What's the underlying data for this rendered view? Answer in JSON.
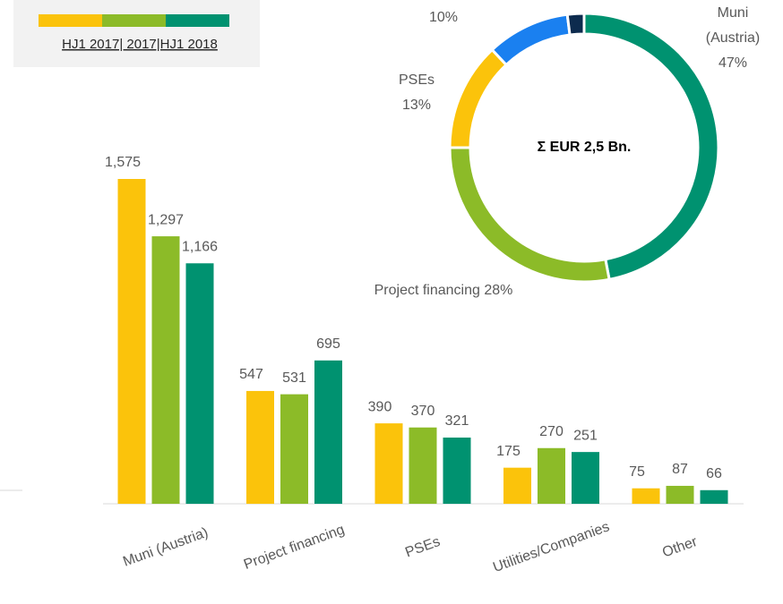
{
  "legend_label": "HJ1 2017| 2017|HJ1 2018",
  "chart_data": [
    {
      "type": "bar",
      "categories": [
        "Muni (Austria)",
        "Project financing",
        "PSEs",
        "Utilities/Companies",
        "Other"
      ],
      "series": [
        {
          "color": "#fbc30b",
          "values": [
            1575,
            547,
            390,
            175,
            75
          ],
          "value_labels": [
            "1,575",
            "547",
            "390",
            "175",
            "75"
          ]
        },
        {
          "color": "#8cbb28",
          "values": [
            1297,
            531,
            370,
            270,
            87
          ],
          "value_labels": [
            "1,297",
            "531",
            "370",
            "270",
            "87"
          ]
        },
        {
          "color": "#009270",
          "values": [
            1166,
            695,
            321,
            251,
            66
          ],
          "value_labels": [
            "1,166",
            "695",
            "321",
            "251",
            "66"
          ]
        }
      ]
    },
    {
      "type": "donut",
      "center_label": "Σ EUR 2,5 Bn.",
      "categories": [
        "Muni (Austria)",
        "Project financing",
        "PSEs",
        "Utilities/Companies",
        "Other"
      ],
      "values": [
        47,
        28,
        13,
        10,
        2
      ],
      "value_labels": [
        "47%",
        "28%",
        "13%",
        "10%",
        null
      ],
      "colors": [
        "#009270",
        "#8cbb28",
        "#fbc30b",
        "#1a80f0",
        "#0d2b4e"
      ]
    }
  ]
}
